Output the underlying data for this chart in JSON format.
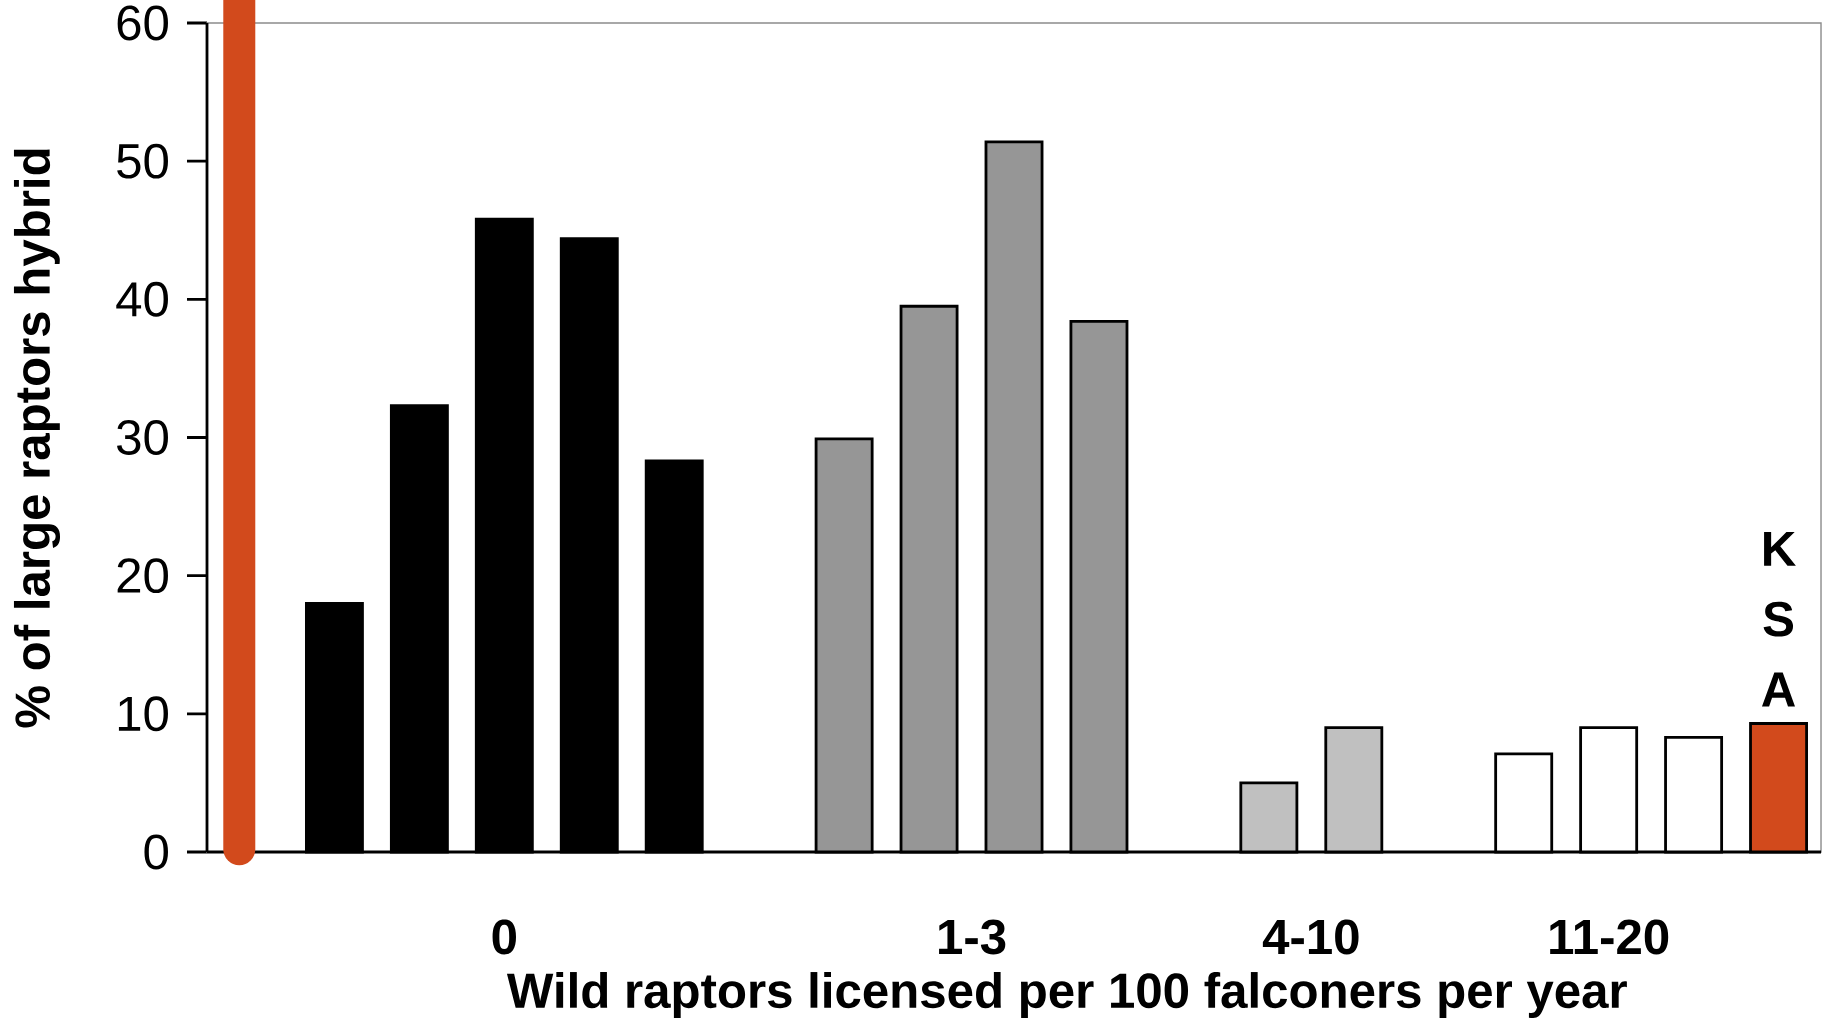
{
  "chart_data": {
    "type": "bar",
    "xlabel": "Wild raptors  licensed  per 100  falconers  per year",
    "ylabel": "% of large raptors  hybrid",
    "categories": [
      null,
      null,
      null,
      null,
      null,
      null,
      null,
      null,
      null,
      null,
      null,
      null,
      null,
      null,
      null,
      null,
      null,
      null,
      null
    ],
    "values": [
      null,
      18,
      32.3,
      45.8,
      44.4,
      28.3,
      null,
      29.9,
      39.5,
      51.4,
      38.4,
      null,
      5,
      9,
      null,
      7.1,
      9,
      8.3,
      9.3
    ],
    "colors": [
      null,
      "#000000",
      "#000000",
      "#000000",
      "#000000",
      "#000000",
      null,
      "#969696",
      "#969696",
      "#969696",
      "#969696",
      null,
      "#c0c0c0",
      "#c0c0c0",
      null,
      "#ffffff",
      "#ffffff",
      "#ffffff",
      "#d24a1c"
    ],
    "ylim": [
      0,
      60
    ],
    "yticks": [
      0,
      10,
      20,
      30,
      40,
      50,
      60
    ],
    "annotations": [
      "0",
      "1-3",
      "4-10",
      "11-20",
      "K S A"
    ]
  }
}
